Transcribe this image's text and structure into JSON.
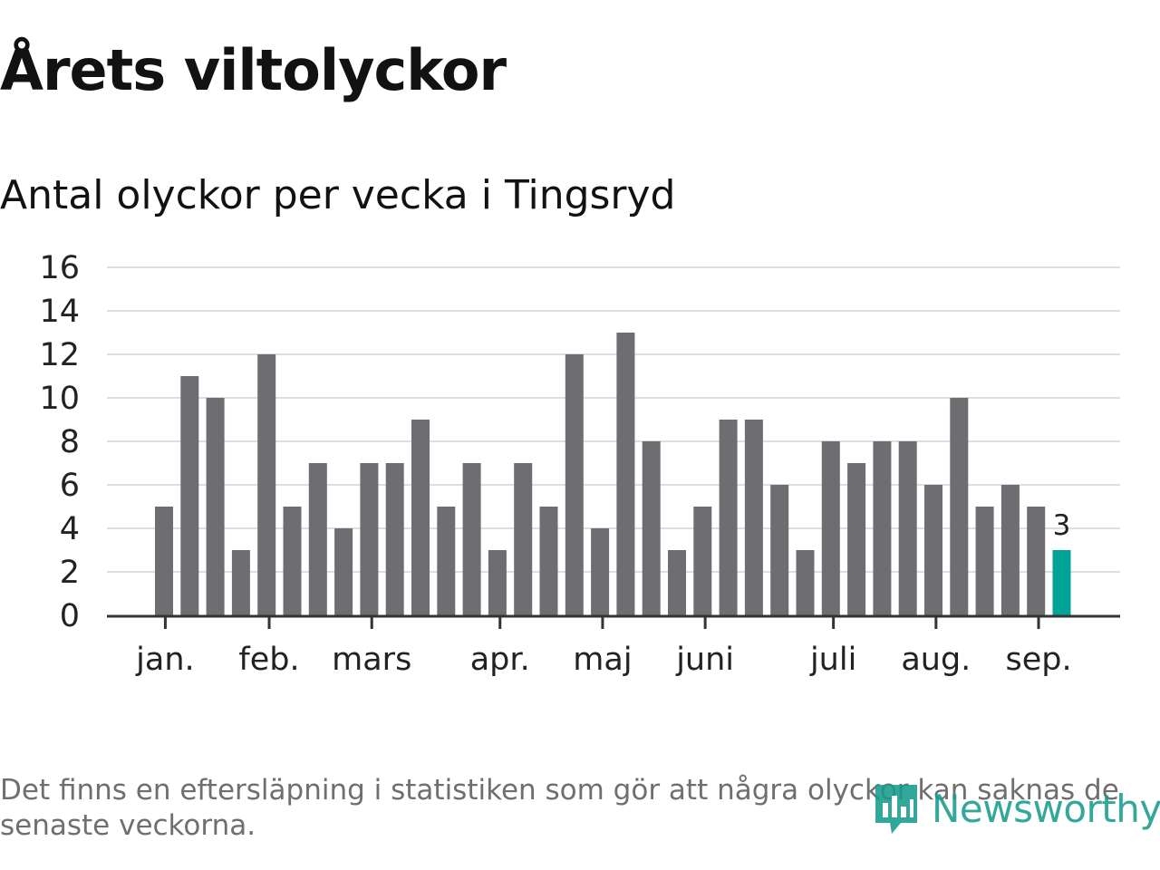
{
  "title": "Årets viltolyckor",
  "subtitle": "Antal olyckor per vecka i Tingsryd",
  "footnote": "Det finns en eftersläpning i statistiken som gör att några olyckor kan saknas de senaste veckorna.",
  "brand": {
    "name": "Newsworthy",
    "color": "#179c8c",
    "icon": "newsworthy-logo-icon"
  },
  "chart_data": {
    "type": "bar",
    "title": "Antal olyckor per vecka i Tingsryd",
    "xlabel": "",
    "ylabel": "",
    "ylim": [
      0,
      16
    ],
    "yticks": [
      0,
      2,
      4,
      6,
      8,
      10,
      12,
      14,
      16
    ],
    "grid": true,
    "legend": "none",
    "values": [
      5,
      11,
      10,
      3,
      12,
      5,
      7,
      4,
      7,
      7,
      9,
      5,
      7,
      3,
      7,
      5,
      12,
      4,
      13,
      8,
      3,
      5,
      9,
      9,
      6,
      3,
      8,
      7,
      8,
      8,
      6,
      10,
      5,
      6,
      5,
      3
    ],
    "month_ticks": [
      {
        "label": "jan.",
        "at": 0.05
      },
      {
        "label": "feb.",
        "at": 4.1
      },
      {
        "label": "mars",
        "at": 8.1
      },
      {
        "label": "apr.",
        "at": 13.1
      },
      {
        "label": "maj",
        "at": 17.1
      },
      {
        "label": "juni",
        "at": 21.1
      },
      {
        "label": "juli",
        "at": 26.1
      },
      {
        "label": "aug.",
        "at": 30.1
      },
      {
        "label": "sep.",
        "at": 34.1
      }
    ],
    "highlight": {
      "index": 35,
      "label": "3"
    },
    "colors": {
      "bar": "#6e6d72",
      "highlight": "#00a396",
      "grid": "#dedede",
      "axis": "#333333"
    }
  }
}
